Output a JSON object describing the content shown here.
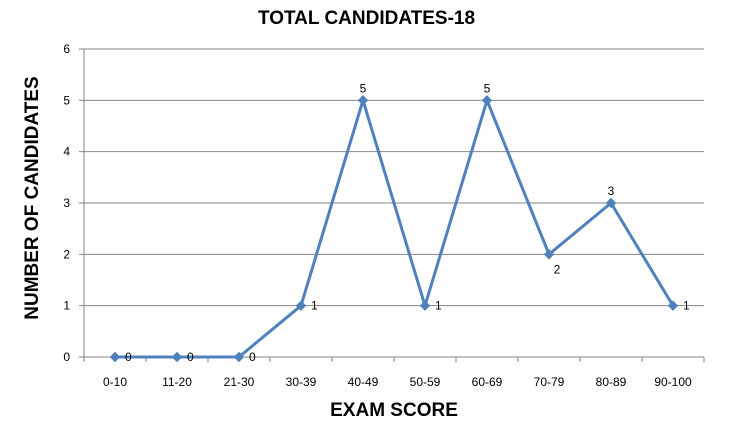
{
  "chart_data": {
    "type": "line",
    "title": "TOTAL CANDIDATES-18",
    "xlabel": "EXAM SCORE",
    "ylabel": "NUMBER OF CANDIDATES",
    "categories": [
      "0-10",
      "11-20",
      "21-30",
      "30-39",
      "40-49",
      "50-59",
      "60-69",
      "70-79",
      "80-89",
      "90-100"
    ],
    "series": [
      {
        "values": [
          0,
          0,
          0,
          1,
          5,
          1,
          5,
          2,
          3,
          1
        ]
      }
    ],
    "data_labels": [
      "0",
      "0",
      "0",
      "1",
      "5",
      "1",
      "5",
      "2",
      "3",
      "1"
    ],
    "ylim": [
      0,
      6
    ],
    "yticks": [
      "0",
      "1",
      "2",
      "3",
      "4",
      "5",
      "6"
    ],
    "grid": true,
    "legend": "none",
    "colors": {
      "line": "#4F81BD",
      "grid": "#868686",
      "axis": "#868686"
    }
  }
}
